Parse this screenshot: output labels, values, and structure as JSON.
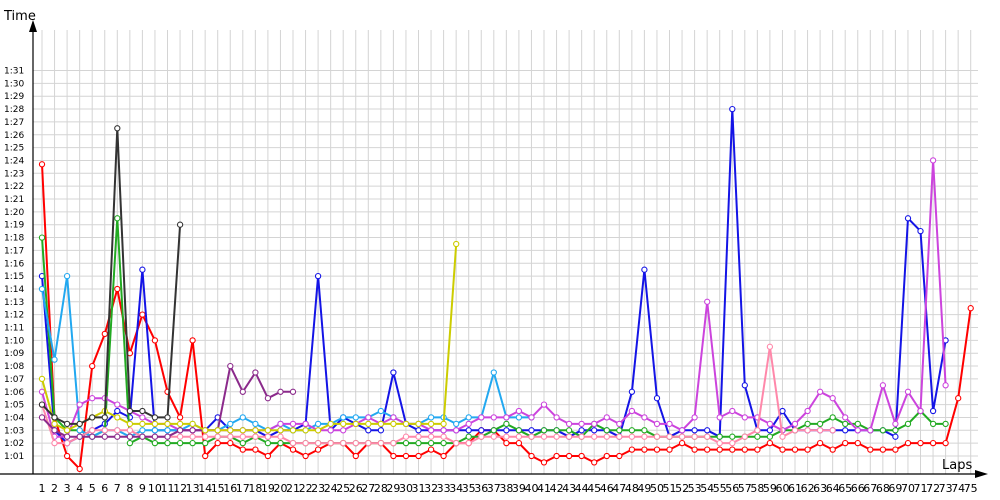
{
  "chart_data": {
    "type": "line",
    "xlabel": "Laps",
    "ylabel": "Time",
    "grid": true,
    "x_ticks": [
      "1",
      "2",
      "3",
      "4",
      "5",
      "6",
      "7",
      "8",
      "9",
      "10",
      "11",
      "12",
      "13",
      "14",
      "15",
      "16",
      "17",
      "18",
      "19",
      "20",
      "21",
      "22",
      "23",
      "24",
      "25",
      "26",
      "27",
      "28",
      "29",
      "30",
      "31",
      "32",
      "33",
      "34",
      "35",
      "36",
      "37",
      "38",
      "39",
      "40",
      "41",
      "42",
      "43",
      "44",
      "45",
      "46",
      "47",
      "48",
      "49",
      "50",
      "51",
      "52",
      "53",
      "54",
      "55",
      "56",
      "57",
      "58",
      "59",
      "60",
      "61",
      "62",
      "63",
      "64",
      "65",
      "66",
      "67",
      "68",
      "69",
      "70",
      "71",
      "72",
      "73",
      "74",
      "75"
    ],
    "y_ticks": [
      "1:01",
      "1:02",
      "1:03",
      "1:04",
      "1:05",
      "1:06",
      "1:07",
      "1:08",
      "1:09",
      "1:10",
      "1:11",
      "1:12",
      "1:13",
      "1:14",
      "1:15",
      "1:16",
      "1:17",
      "1:18",
      "1:19",
      "1:20",
      "1:21",
      "1:22",
      "1:23",
      "1:24",
      "1:25",
      "1:26",
      "1:27",
      "1:28",
      "1:29",
      "1:30",
      "1:31"
    ],
    "ylim": [
      60,
      92
    ],
    "xlim": [
      1,
      75
    ],
    "series": [
      {
        "color": "#ff0000",
        "values": [
          83.7,
          64,
          61,
          60,
          68,
          70.5,
          74,
          69,
          72,
          70,
          66,
          64,
          70,
          61,
          62,
          62,
          61.5,
          61.5,
          61,
          62,
          61.5,
          61,
          61.5,
          62,
          62,
          61,
          62,
          62,
          61,
          61,
          61,
          61.5,
          61,
          62,
          62,
          63,
          63,
          62,
          62,
          61,
          60.5,
          61,
          61,
          61,
          60.5,
          61,
          61,
          61.5,
          61.5,
          61.5,
          61.5,
          62,
          61.5,
          61.5,
          61.5,
          61.5,
          61.5,
          61.5,
          62,
          61.5,
          61.5,
          61.5,
          62,
          61.5,
          62,
          62,
          61.5,
          61.5,
          61.5,
          62,
          62,
          62,
          62,
          65.5,
          72.5
        ]
      },
      {
        "color": "#1414e6",
        "values": [
          75,
          63,
          62,
          62.5,
          63,
          63.5,
          64.5,
          64,
          75.5,
          63,
          63,
          63,
          63,
          63,
          64,
          63,
          63,
          63,
          62.5,
          63,
          63,
          63.5,
          75,
          63,
          64,
          63.5,
          63,
          63,
          67.5,
          63.5,
          63,
          63,
          63,
          63,
          63,
          63,
          63,
          63,
          63,
          63,
          63,
          63,
          62.5,
          63,
          63,
          63,
          62.5,
          66,
          75.5,
          65.5,
          62.5,
          63,
          63,
          63,
          62.5,
          88,
          66.5,
          63,
          63,
          64.5,
          63,
          63,
          63,
          63,
          63,
          63,
          63,
          63,
          62.5,
          79.5,
          78.5,
          64.5,
          70
        ]
      },
      {
        "color": "#22aa22",
        "values": [
          78,
          64,
          63,
          63,
          62.5,
          63,
          79.5,
          62,
          62.5,
          62,
          62,
          62,
          62,
          62,
          62.5,
          62.5,
          62,
          62.5,
          62,
          62,
          62,
          62,
          62,
          62,
          62,
          62,
          62,
          62,
          62,
          62,
          62,
          62,
          62,
          62,
          62.5,
          62.5,
          63,
          63.5,
          63,
          62.5,
          63,
          63,
          63,
          62.5,
          63.5,
          63,
          63,
          63,
          63,
          62.5,
          62.5,
          62.5,
          62.5,
          62.5,
          62.5,
          62.5,
          62.5,
          62.5,
          62.5,
          63,
          63,
          63.5,
          63.5,
          64,
          63.5,
          63.5,
          63,
          63,
          63,
          63.5,
          64.5,
          63.5,
          63.5
        ]
      },
      {
        "color": "#22a8f0",
        "values": [
          74,
          68.5,
          75,
          63,
          62.5,
          63,
          63,
          62.5,
          63,
          63,
          63,
          63,
          63.5,
          63,
          63,
          63.5,
          64,
          63.5,
          63,
          63.5,
          63,
          63,
          63.5,
          63.5,
          64,
          64,
          64,
          64.5,
          64,
          63.5,
          63.5,
          64,
          64,
          63.5,
          64,
          64,
          67.5,
          64,
          64,
          64
        ]
      },
      {
        "color": "#cc44dd",
        "values": [
          66,
          62.5,
          62.5,
          65,
          65.5,
          65.5,
          65,
          64.5,
          64,
          63.5,
          63.5,
          63,
          63,
          63,
          63,
          63,
          63,
          63,
          63,
          63.5,
          63.5,
          63.5,
          63,
          63,
          63,
          63.5,
          64,
          63.5,
          64,
          63.5,
          63.5,
          63,
          63,
          63,
          63.5,
          64,
          64,
          64,
          64.5,
          64,
          65,
          64,
          63.5,
          63.5,
          63.5,
          64,
          63.5,
          64.5,
          64,
          63.5,
          63.5,
          63,
          64,
          73,
          64,
          64.5,
          64,
          64,
          63.5,
          63,
          63.5,
          64.5,
          66,
          65.5,
          64,
          63,
          63,
          66.5,
          63.5,
          66,
          64.5,
          84,
          66.5
        ]
      },
      {
        "color": "#ff88aa",
        "values": [
          65,
          62,
          62,
          62.5,
          63,
          63,
          63,
          63,
          62.5,
          62.5,
          62.5,
          62.5,
          62.5,
          62.5,
          62.5,
          62.5,
          62.5,
          62.5,
          62.5,
          62.5,
          62,
          62,
          62,
          62,
          62,
          62,
          62,
          62,
          62,
          62.5,
          62.5,
          62.5,
          62.5,
          62,
          62,
          62.5,
          62.5,
          62.5,
          62.5,
          62.5,
          62.5,
          62.5,
          62.5,
          62.5,
          62.5,
          62.5,
          62.5,
          62.5,
          62.5,
          62.5,
          62.5,
          62.5,
          62.5,
          62.5,
          62,
          62,
          62.5,
          63,
          69.5,
          62.5,
          63,
          63,
          63,
          63
        ]
      },
      {
        "color": "#8b2a8b",
        "values": [
          64,
          63,
          62.5,
          62.5,
          62.5,
          62.5,
          62.5,
          62.5,
          62.5,
          62.5,
          62.5,
          63,
          63,
          63,
          63,
          68,
          66,
          67.5,
          65.5,
          66,
          66
        ]
      },
      {
        "color": "#cccc00",
        "values": [
          67,
          63.5,
          63,
          63.5,
          64,
          64.5,
          64,
          63.5,
          63.5,
          63.5,
          63.5,
          63.5,
          63.5,
          63,
          63,
          63,
          63,
          63,
          63,
          63,
          63,
          63,
          63,
          63.5,
          63.5,
          63.5,
          63.5,
          63.5,
          63.5,
          63.5,
          63.5,
          63.5,
          63.5,
          77.5
        ]
      },
      {
        "color": "#333333",
        "values": [
          65,
          64,
          63.5,
          63.5,
          64,
          64,
          86.5,
          64.5,
          64.5,
          64,
          64,
          79
        ]
      }
    ]
  }
}
